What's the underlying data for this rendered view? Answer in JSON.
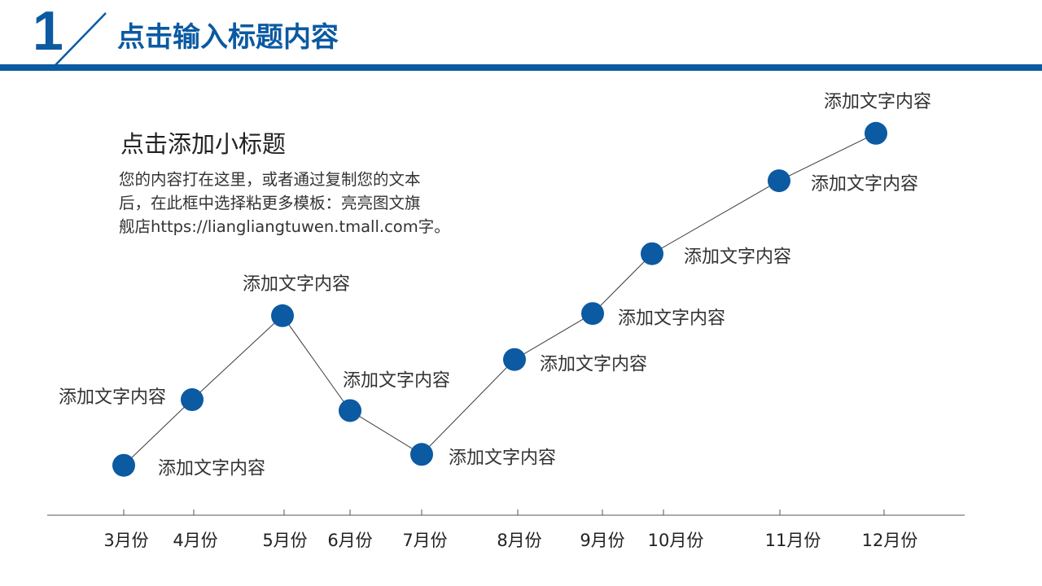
{
  "header": {
    "number": "1",
    "title": "点击输入标题内容"
  },
  "intro": {
    "subtitle": "点击添加小标题",
    "body_lines": [
      "您的内容打在这里，或者通过复制您的文本",
      "后，在此框中选择粘更多模板：亮亮图文旗",
      "舰店https://lianglian​gtuwen.tmall.com字。"
    ]
  },
  "colors": {
    "accent": "#0b5aa2",
    "line": "#3a3a3a",
    "axis": "#555555",
    "text": "#333333"
  },
  "chart_data": {
    "type": "line",
    "title": "",
    "xlabel": "",
    "ylabel": "",
    "categories": [
      "3月份",
      "4月份",
      "5月份",
      "6月份",
      "7月份",
      "8月份",
      "9月份",
      "10月份",
      "11月份",
      "12月份"
    ],
    "values": [
      0.5,
      9.5,
      21,
      8,
      2,
      15,
      21.3,
      29.5,
      39.5,
      46
    ],
    "ylim": [
      -6,
      52
    ],
    "grid": false,
    "legend": "none",
    "annotations": [
      "添加文字内容",
      "添加文字内容",
      "添加文字内容",
      "添加文字内容",
      "添加文字内容",
      "添加文字内容",
      "添加文字内容",
      "添加文字内容",
      "添加文字内容",
      "添加文字内容"
    ]
  }
}
